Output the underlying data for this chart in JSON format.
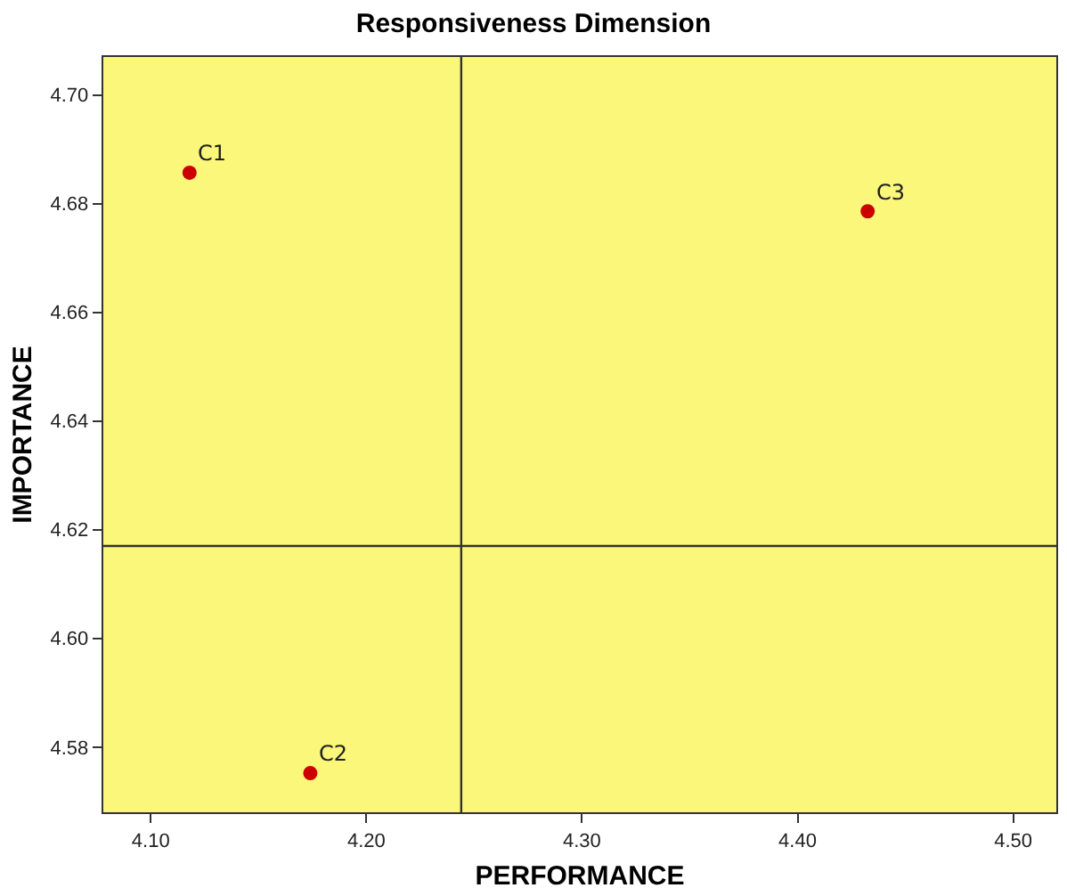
{
  "chart_data": {
    "type": "scatter",
    "title": "Responsiveness Dimension",
    "xlabel": "PERFORMANCE",
    "ylabel": "IMPORTANCE",
    "x": [
      4.118,
      4.174,
      4.4325
    ],
    "series": [
      {
        "color": "#cc0000",
        "values": [
          4.6857,
          4.5752,
          4.6786
        ]
      }
    ],
    "marker": "circle",
    "grid": false,
    "xlim": [
      4.078,
      4.52
    ],
    "xticks": [
      {
        "value": 4.1,
        "label": "4.10"
      },
      {
        "value": 4.2,
        "label": "4.20"
      },
      {
        "value": 4.3,
        "label": "4.30"
      },
      {
        "value": 4.4,
        "label": "4.40"
      },
      {
        "value": 4.5,
        "label": "4.50"
      }
    ],
    "ylim": [
      4.568,
      4.707
    ],
    "yticks": [
      {
        "value": 4.58,
        "label": "4.58"
      },
      {
        "value": 4.6,
        "label": "4.60"
      },
      {
        "value": 4.62,
        "label": "4.62"
      },
      {
        "value": 4.64,
        "label": "4.64"
      },
      {
        "value": 4.66,
        "label": "4.66"
      },
      {
        "value": 4.68,
        "label": "4.68"
      },
      {
        "value": 4.7,
        "label": "4.70"
      }
    ],
    "ref_lines": [
      {
        "axis": "x",
        "value": 4.244,
        "color": "#333333"
      },
      {
        "axis": "y",
        "value": 4.617,
        "color": "#333333"
      }
    ],
    "annotations": [
      {
        "text": "C1",
        "x": 4.118,
        "y": 4.6857
      },
      {
        "text": "C2",
        "x": 4.174,
        "y": 4.5752
      },
      {
        "text": "C3",
        "x": 4.4325,
        "y": 4.6786
      }
    ]
  }
}
